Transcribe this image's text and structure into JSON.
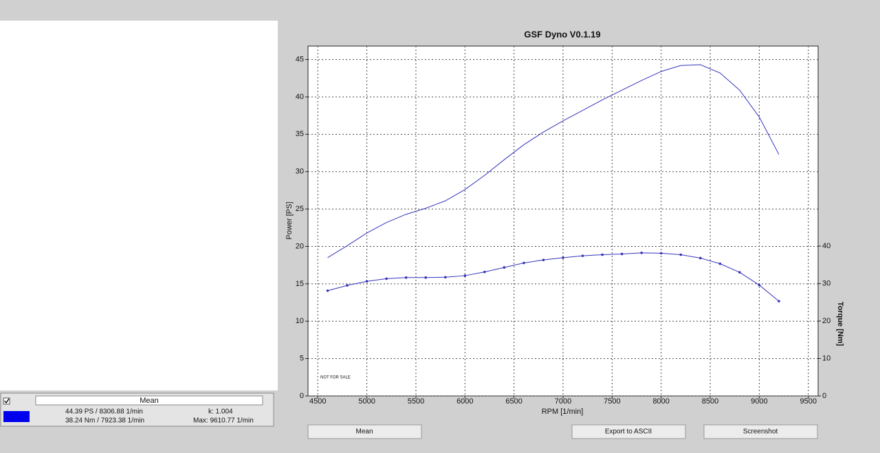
{
  "legend_panel": {
    "field": "Mean",
    "power_max": "44.39 PS / 8306.88 1/min",
    "torque_max": "38.24 Nm / 7923.38 1/min",
    "k": "k: 1.004",
    "rpm_max": "Max: 9610.77 1/min",
    "swatch_color": "#0000ee"
  },
  "buttons": [
    "Mean",
    "Export to ASCII",
    "Screenshot"
  ],
  "chart_data": {
    "type": "line",
    "title": "GSF Dyno V0.1.19",
    "x_label": "RPM [1/min]",
    "y_label": "Power [PS]",
    "y2_label": "Torque [Nm]",
    "annotation": "NOT FOR SALE",
    "x": [
      4600,
      4800,
      5000,
      5200,
      5400,
      5600,
      5800,
      6000,
      6200,
      6400,
      6600,
      6800,
      7000,
      7200,
      7400,
      7600,
      7800,
      8000,
      8200,
      8400,
      8600,
      8800,
      9000,
      9200
    ],
    "series": [
      {
        "color": "#3333bb",
        "markers": false,
        "values": [
          18.5,
          20.1,
          21.8,
          23.2,
          24.3,
          25.1,
          26.1,
          27.6,
          29.5,
          31.6,
          33.6,
          35.3,
          36.8,
          38.2,
          39.6,
          40.9,
          42.2,
          43.4,
          44.2,
          44.3,
          43.2,
          40.9,
          37.3,
          32.3
        ]
      },
      {
        "color": "#3333bb",
        "markers": true,
        "axis": "y2",
        "values": [
          28.1,
          29.5,
          30.6,
          31.3,
          31.6,
          31.6,
          31.7,
          32.1,
          33.1,
          34.3,
          35.5,
          36.3,
          36.9,
          37.4,
          37.7,
          37.9,
          38.2,
          38.1,
          37.7,
          36.8,
          35.3,
          33.0,
          29.6,
          25.3
        ]
      }
    ],
    "xlim": [
      4400,
      9600
    ],
    "xticks": [
      4500,
      5000,
      5500,
      6000,
      6500,
      7000,
      7500,
      8000,
      8500,
      9000,
      9500
    ],
    "ylim": [
      0,
      46.8
    ],
    "yticks": [
      0,
      5,
      10,
      15,
      20,
      25,
      30,
      35,
      40,
      45
    ],
    "y2lim": [
      0,
      93.4
    ],
    "y2ticks": [
      0,
      10,
      20,
      30,
      40
    ],
    "grid": true
  }
}
